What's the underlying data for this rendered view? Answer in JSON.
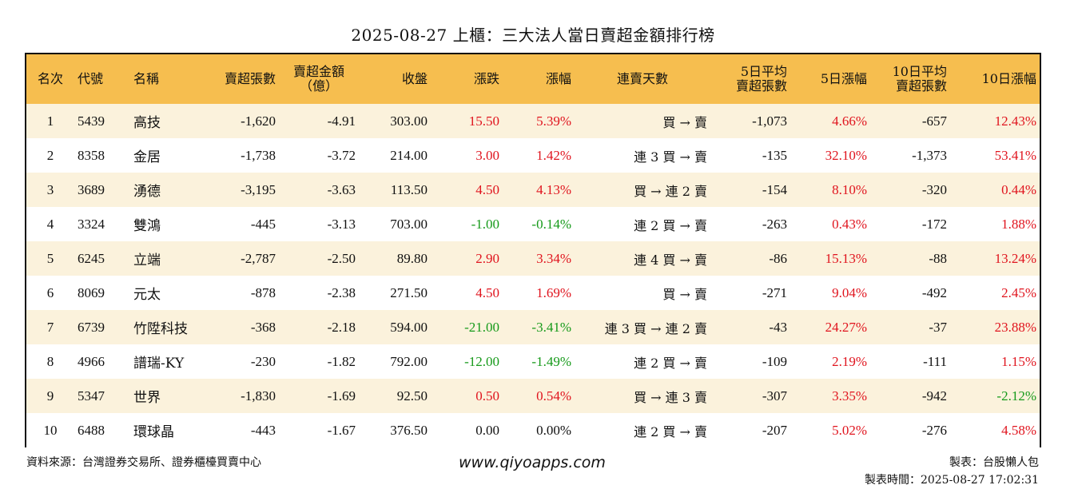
{
  "title": "2025-08-27 上櫃：三大法人當日賣超金額排行榜",
  "colors": {
    "header_bg": "#f6be4f",
    "row_alt_bg": "#fbf2dc",
    "up": "#e0141e",
    "down": "#169a1a"
  },
  "headers": {
    "rank": "名次",
    "code": "代號",
    "name": "名稱",
    "sell_lots": "賣超張數",
    "sell_amt_1": "賣超金額",
    "sell_amt_2": "（億）",
    "close": "收盤",
    "change": "漲跌",
    "pct": "漲幅",
    "streak": "連賣天數",
    "avg5_1": "5日平均",
    "avg5_2": "賣超張數",
    "pct5": "5日漲幅",
    "avg10_1": "10日平均",
    "avg10_2": "賣超張數",
    "pct10": "10日漲幅"
  },
  "rows": [
    {
      "rank": "1",
      "code": "5439",
      "name": "高技",
      "sell_lots": "-1,620",
      "sell_amt": "-4.91",
      "close": "303.00",
      "change": "15.50",
      "pct": "5.39%",
      "streak": "買 → 賣",
      "avg5": "-1,073",
      "pct5": "4.66%",
      "avg10": "-657",
      "pct10": "12.43%"
    },
    {
      "rank": "2",
      "code": "8358",
      "name": "金居",
      "sell_lots": "-1,738",
      "sell_amt": "-3.72",
      "close": "214.00",
      "change": "3.00",
      "pct": "1.42%",
      "streak": "連 3 買 → 賣",
      "avg5": "-135",
      "pct5": "32.10%",
      "avg10": "-1,373",
      "pct10": "53.41%"
    },
    {
      "rank": "3",
      "code": "3689",
      "name": "湧德",
      "sell_lots": "-3,195",
      "sell_amt": "-3.63",
      "close": "113.50",
      "change": "4.50",
      "pct": "4.13%",
      "streak": "買 → 連 2 賣",
      "avg5": "-154",
      "pct5": "8.10%",
      "avg10": "-320",
      "pct10": "0.44%"
    },
    {
      "rank": "4",
      "code": "3324",
      "name": "雙鴻",
      "sell_lots": "-445",
      "sell_amt": "-3.13",
      "close": "703.00",
      "change": "-1.00",
      "pct": "-0.14%",
      "streak": "連 2 買 → 賣",
      "avg5": "-263",
      "pct5": "0.43%",
      "avg10": "-172",
      "pct10": "1.88%"
    },
    {
      "rank": "5",
      "code": "6245",
      "name": "立端",
      "sell_lots": "-2,787",
      "sell_amt": "-2.50",
      "close": "89.80",
      "change": "2.90",
      "pct": "3.34%",
      "streak": "連 4 買 → 賣",
      "avg5": "-86",
      "pct5": "15.13%",
      "avg10": "-88",
      "pct10": "13.24%"
    },
    {
      "rank": "6",
      "code": "8069",
      "name": "元太",
      "sell_lots": "-878",
      "sell_amt": "-2.38",
      "close": "271.50",
      "change": "4.50",
      "pct": "1.69%",
      "streak": "買 → 賣",
      "avg5": "-271",
      "pct5": "9.04%",
      "avg10": "-492",
      "pct10": "2.45%"
    },
    {
      "rank": "7",
      "code": "6739",
      "name": "竹陞科技",
      "sell_lots": "-368",
      "sell_amt": "-2.18",
      "close": "594.00",
      "change": "-21.00",
      "pct": "-3.41%",
      "streak": "連 3 買 → 連 2 賣",
      "avg5": "-43",
      "pct5": "24.27%",
      "avg10": "-37",
      "pct10": "23.88%"
    },
    {
      "rank": "8",
      "code": "4966",
      "name": "譜瑞-KY",
      "sell_lots": "-230",
      "sell_amt": "-1.82",
      "close": "792.00",
      "change": "-12.00",
      "pct": "-1.49%",
      "streak": "連 2 買 → 賣",
      "avg5": "-109",
      "pct5": "2.19%",
      "avg10": "-111",
      "pct10": "1.15%"
    },
    {
      "rank": "9",
      "code": "5347",
      "name": "世界",
      "sell_lots": "-1,830",
      "sell_amt": "-1.69",
      "close": "92.50",
      "change": "0.50",
      "pct": "0.54%",
      "streak": "買 → 連 3 賣",
      "avg5": "-307",
      "pct5": "3.35%",
      "avg10": "-942",
      "pct10": "-2.12%"
    },
    {
      "rank": "10",
      "code": "6488",
      "name": "環球晶",
      "sell_lots": "-443",
      "sell_amt": "-1.67",
      "close": "376.50",
      "change": "0.00",
      "pct": "0.00%",
      "streak": "連 2 買 → 賣",
      "avg5": "-207",
      "pct5": "5.02%",
      "avg10": "-276",
      "pct10": "4.58%"
    }
  ],
  "footer": {
    "source": "資料來源：台灣證券交易所、證券櫃檯買賣中心",
    "website": "www.qiyoapps.com",
    "maker": "製表：台股懶人包",
    "made_time": "製表時間：2025-08-27 17:02:31"
  }
}
